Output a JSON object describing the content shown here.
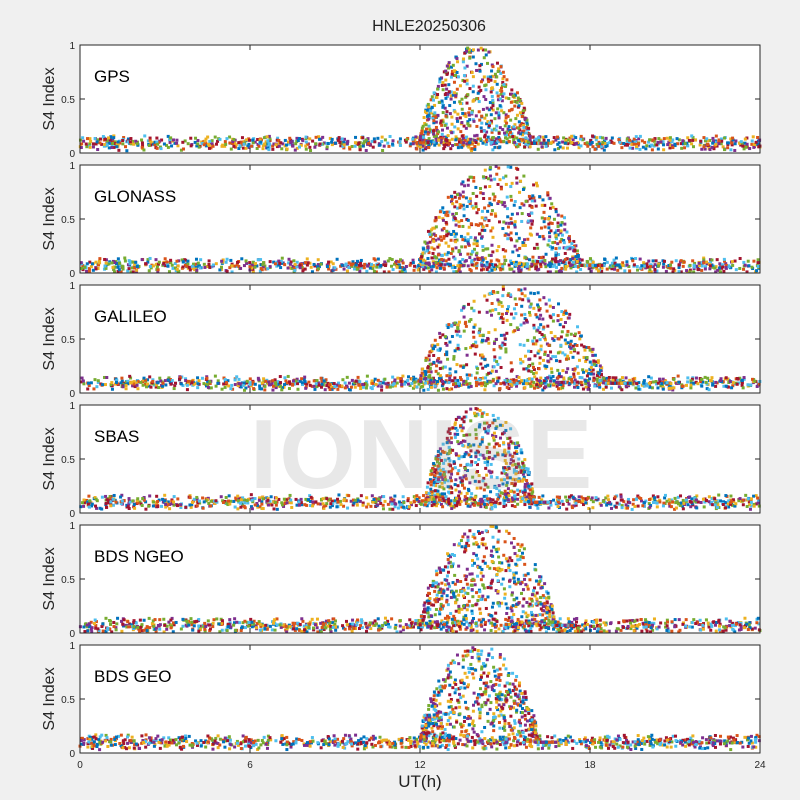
{
  "chart_data": {
    "title": "HNLE20250306",
    "xlabel": "UT(h)",
    "ylabel": "S4 Index",
    "watermark": "IONISE",
    "xlim": [
      0,
      24
    ],
    "xticks": [
      "0",
      "6",
      "12",
      "18",
      "24"
    ],
    "ylim": [
      0,
      1
    ],
    "yticks": [
      "0",
      "0.5",
      "1"
    ],
    "grid": false,
    "series_colors": [
      "#0072bd",
      "#d95319",
      "#edb120",
      "#7e2f8e",
      "#77ac30",
      "#4dbeee",
      "#a2142f"
    ],
    "panels": [
      {
        "label": "GPS",
        "type": "scatter",
        "baseline": 0.09,
        "storm_start": 12.0,
        "storm_end": 16.5,
        "storm_peak": 1.0,
        "seed": 11
      },
      {
        "label": "GLONASS",
        "type": "scatter",
        "baseline": 0.07,
        "storm_start": 12.0,
        "storm_end": 18.5,
        "storm_peak": 1.0,
        "seed": 23
      },
      {
        "label": "GALILEO",
        "type": "scatter",
        "baseline": 0.09,
        "storm_start": 12.0,
        "storm_end": 19.5,
        "storm_peak": 1.0,
        "seed": 37
      },
      {
        "label": "SBAS",
        "type": "scatter",
        "baseline": 0.1,
        "storm_start": 12.2,
        "storm_end": 16.6,
        "storm_peak": 1.0,
        "seed": 41
      },
      {
        "label": "BDS NGEO",
        "type": "scatter",
        "baseline": 0.07,
        "storm_start": 12.0,
        "storm_end": 17.5,
        "storm_peak": 1.0,
        "seed": 53
      },
      {
        "label": "BDS GEO",
        "type": "scatter",
        "baseline": 0.1,
        "storm_start": 12.0,
        "storm_end": 16.8,
        "storm_peak": 1.0,
        "seed": 67
      }
    ]
  }
}
